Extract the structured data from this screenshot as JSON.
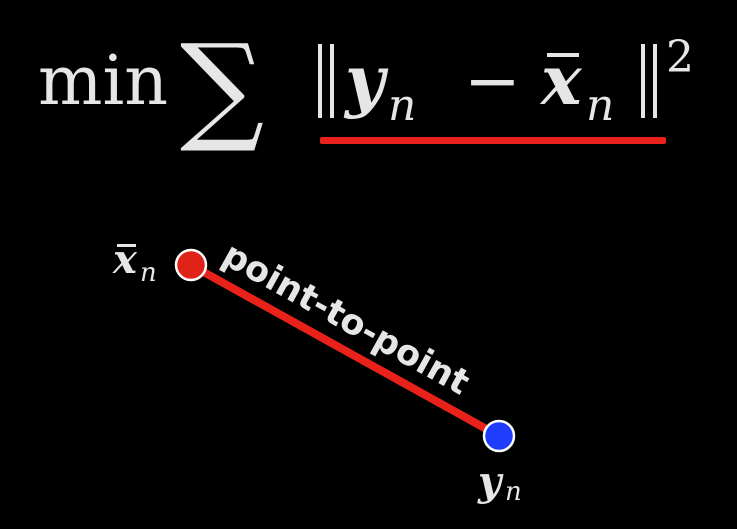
{
  "formula": {
    "operator": "min",
    "sum_symbol": "∑",
    "norm_open": "||",
    "term_y": "y",
    "subscript_n": "n",
    "minus": "−",
    "term_x": "x",
    "norm_close": "||",
    "exponent": "2",
    "underline_color": "#e8221b"
  },
  "diagram": {
    "label_xbar": "x",
    "label_xbar_sub": "n",
    "label_y": "y",
    "label_y_sub": "n",
    "segment_label": "point-to-point",
    "colors": {
      "segment": "#e8221b",
      "point_xbar": "#e02318",
      "point_y": "#1f3cff",
      "point_outline": "#ffffff",
      "text": "#e6e6e6"
    }
  }
}
